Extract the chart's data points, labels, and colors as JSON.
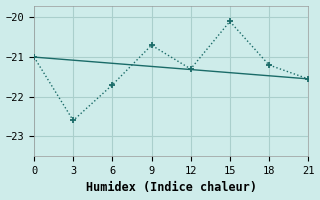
{
  "xlabel": "Humidex (Indice chaleur)",
  "bg_color": "#ceecea",
  "line_color": "#1a6b68",
  "grid_color": "#aacfcc",
  "xlim": [
    0,
    21
  ],
  "ylim": [
    -23.5,
    -19.7
  ],
  "xticks": [
    0,
    3,
    6,
    9,
    12,
    15,
    18,
    21
  ],
  "yticks": [
    -23,
    -22,
    -21,
    -20
  ],
  "line1_x": [
    0,
    3,
    6,
    9,
    12,
    15,
    18,
    21
  ],
  "line1_y": [
    -21.0,
    -22.6,
    -21.7,
    -20.7,
    -21.3,
    -20.1,
    -21.2,
    -21.55
  ],
  "line2_x": [
    0,
    21
  ],
  "line2_y": [
    -21.0,
    -21.55
  ],
  "tick_fontsize": 7.5,
  "label_fontsize": 8.5
}
